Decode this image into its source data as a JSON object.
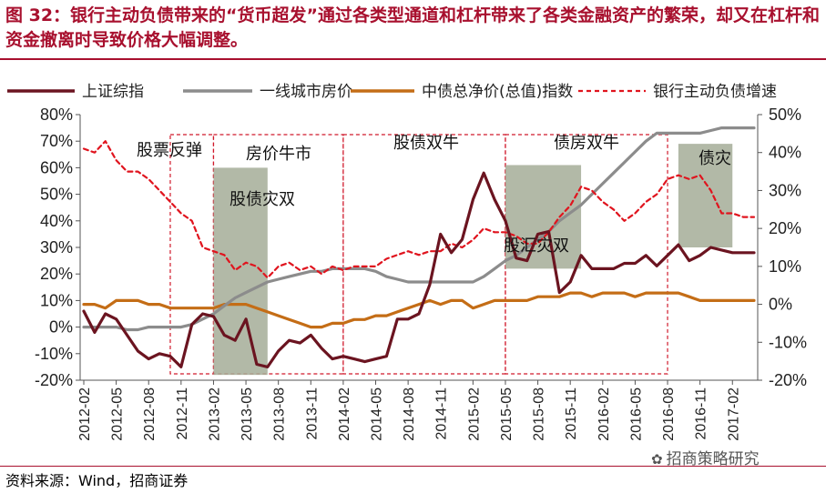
{
  "header": {
    "title": "图 32：银行主动负债带来的“货币超发”通过各类型通道和杠杆带来了各类金融资产的繁荣，却又在杠杆和资金撤离时导致价格大幅调整。"
  },
  "footer": {
    "source": "资料来源：Wind，招商证券",
    "watermark": "招商策略研究"
  },
  "chart_data": {
    "type": "line",
    "x": [
      "2012-02",
      "2012-03",
      "2012-04",
      "2012-05",
      "2012-06",
      "2012-07",
      "2012-08",
      "2012-09",
      "2012-10",
      "2012-11",
      "2012-12",
      "2013-01",
      "2013-02",
      "2013-03",
      "2013-04",
      "2013-05",
      "2013-06",
      "2013-07",
      "2013-08",
      "2013-09",
      "2013-10",
      "2013-11",
      "2013-12",
      "2014-01",
      "2014-02",
      "2014-03",
      "2014-04",
      "2014-05",
      "2014-06",
      "2014-07",
      "2014-08",
      "2014-09",
      "2014-10",
      "2014-11",
      "2014-12",
      "2015-01",
      "2015-02",
      "2015-03",
      "2015-04",
      "2015-05",
      "2015-06",
      "2015-07",
      "2015-08",
      "2015-09",
      "2015-10",
      "2015-11",
      "2015-12",
      "2016-01",
      "2016-02",
      "2016-03",
      "2016-04",
      "2016-05",
      "2016-06",
      "2016-07",
      "2016-08",
      "2016-09",
      "2016-10",
      "2016-11",
      "2016-12",
      "2017-01",
      "2017-02",
      "2017-03",
      "2017-04"
    ],
    "xticks": [
      "2012-02",
      "2012-05",
      "2012-08",
      "2012-11",
      "2013-02",
      "2013-05",
      "2013-08",
      "2013-11",
      "2014-02",
      "2014-05",
      "2014-08",
      "2014-11",
      "2015-02",
      "2015-05",
      "2015-08",
      "2015-11",
      "2016-02",
      "2016-05",
      "2016-08",
      "2016-11",
      "2017-02"
    ],
    "y_left": {
      "ylim": [
        -20,
        80
      ],
      "ticks": [
        "-20%",
        "-10%",
        "0%",
        "10%",
        "20%",
        "30%",
        "40%",
        "50%",
        "60%",
        "70%",
        "80%"
      ]
    },
    "y_right": {
      "ylim": [
        -20,
        50
      ],
      "ticks": [
        "-20%",
        "-10%",
        "0%",
        "10%",
        "20%",
        "30%",
        "40%",
        "50%"
      ]
    },
    "series": [
      {
        "name": "上证综指",
        "axis": "left",
        "color": "#6b1420",
        "style": "solid",
        "values": [
          6,
          -2,
          5,
          3,
          -3,
          -9,
          -12,
          -10,
          -11,
          -15,
          1,
          5,
          4,
          -3,
          -5,
          3,
          -14,
          -15,
          -9,
          -5,
          -6,
          -3,
          -8,
          -12,
          -11,
          -12,
          -13,
          -12,
          -11,
          3,
          3,
          5,
          16,
          35,
          28,
          33,
          48,
          58,
          48,
          40,
          26,
          25,
          35,
          36,
          13,
          17,
          27,
          22,
          22,
          22,
          24,
          24,
          27,
          23,
          27,
          31,
          25,
          27,
          30,
          29,
          28,
          28,
          28
        ]
      },
      {
        "name": "一线城市房价",
        "axis": "left",
        "color": "#8c8c8c",
        "style": "solid",
        "values": [
          0,
          0,
          0,
          0,
          -1,
          -1,
          0,
          0,
          0,
          0,
          1,
          3,
          5,
          8,
          11,
          13,
          15,
          17,
          18,
          19,
          20,
          21,
          21,
          22,
          22,
          22,
          22,
          21,
          19,
          18,
          17,
          17,
          17,
          17,
          17,
          17,
          17,
          19,
          22,
          25,
          27,
          30,
          33,
          36,
          40,
          43,
          46,
          50,
          54,
          58,
          62,
          66,
          70,
          73,
          73,
          73,
          73,
          73,
          74,
          75,
          75,
          75,
          75
        ]
      },
      {
        "name": "中债总净价(总值)指数",
        "axis": "right",
        "color": "#c46d16",
        "style": "solid",
        "values": [
          0,
          0,
          -1,
          1,
          1,
          1,
          0,
          0,
          -1,
          -1,
          -1,
          -1,
          -1,
          0,
          0,
          0,
          -1,
          -2,
          -3,
          -4,
          -5,
          -6,
          -6,
          -5,
          -5,
          -4,
          -4,
          -3,
          -3,
          -2,
          -1,
          0,
          1,
          0,
          1,
          1,
          -1,
          0,
          1,
          1,
          1,
          1,
          2,
          2,
          2,
          3,
          3,
          2,
          3,
          3,
          3,
          2,
          3,
          3,
          3,
          3,
          2,
          1,
          1,
          1,
          1,
          1,
          1
        ]
      },
      {
        "name": "银行主动负债增速",
        "axis": "right",
        "color": "#e0141e",
        "style": "dashed",
        "values": [
          41,
          40,
          43,
          38,
          35,
          35,
          33,
          30,
          27,
          24,
          22,
          15,
          14,
          13,
          9,
          11,
          10,
          7,
          10,
          11,
          9,
          10,
          8,
          10,
          9,
          10,
          10,
          10,
          12,
          13,
          14,
          13,
          14,
          14,
          16,
          15,
          17,
          20,
          19,
          19,
          18,
          16,
          16,
          19,
          23,
          26,
          31,
          30,
          27,
          25,
          22,
          24,
          27,
          29,
          33,
          34,
          33,
          34,
          30,
          24,
          24,
          23,
          23
        ]
      }
    ],
    "regions": [
      {
        "label": "股票反弹",
        "start": "2012-10",
        "end": "2013-02",
        "style": "dashed"
      },
      {
        "label": "房价牛市",
        "start": "2013-02",
        "end": "2014-02",
        "style": "dashed"
      },
      {
        "label": "股债双牛",
        "start": "2014-02",
        "end": "2015-05",
        "style": "dashed"
      },
      {
        "label": "债房双牛",
        "start": "2015-05",
        "end": "2016-08",
        "style": "dashed"
      },
      {
        "label": "股债灾双",
        "start": "2013-02",
        "end": "2013-07",
        "style": "filled",
        "top": 60,
        "bottom": -18
      },
      {
        "label": "股汇灾双",
        "start": "2015-05",
        "end": "2015-12",
        "style": "filled",
        "top": 61,
        "bottom": 22
      },
      {
        "label": "债灾",
        "start": "2016-09",
        "end": "2017-02",
        "style": "filled",
        "top": 69,
        "bottom": 30
      }
    ]
  }
}
